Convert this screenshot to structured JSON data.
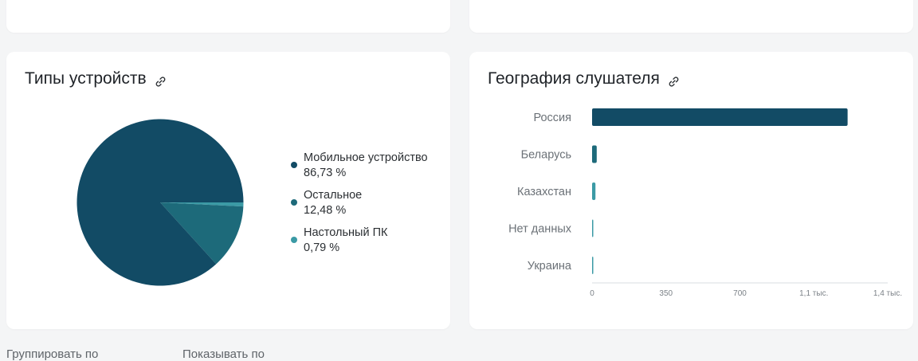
{
  "devices_card": {
    "title": "Типы устройств",
    "icon": "link-icon"
  },
  "geo_card": {
    "title": "География слушателя",
    "icon": "link-icon"
  },
  "bottom": {
    "group_by_label": "Группировать по",
    "show_by_label": "Показывать по"
  },
  "colors": {
    "primary": "#124b65",
    "secondary": "#1d6a7a",
    "tertiary": "#3b9aa5",
    "axis": "#d9dce0"
  },
  "chart_data": [
    {
      "type": "pie",
      "title": "Типы устройств",
      "slices": [
        {
          "label": "Мобильное устройство",
          "value": 86.73,
          "value_text": "86,73 %",
          "color": "#124b65"
        },
        {
          "label": "Остальное",
          "value": 12.48,
          "value_text": "12,48 %",
          "color": "#1d6a7a"
        },
        {
          "label": "Настольный ПК",
          "value": 0.79,
          "value_text": "0,79 %",
          "color": "#3b9aa5"
        }
      ],
      "legend_position": "right"
    },
    {
      "type": "bar",
      "orientation": "horizontal",
      "title": "География слушателя",
      "categories": [
        "Россия",
        "Беларусь",
        "Казахстан",
        "Нет данных",
        "Украина"
      ],
      "values": [
        1210,
        22,
        16,
        2,
        1
      ],
      "colors": [
        "#124b65",
        "#1d6a7a",
        "#3b9aa5",
        "#3b9aa5",
        "#3b9aa5"
      ],
      "xlim": [
        0,
        1400
      ],
      "xticks": [
        {
          "value": 0,
          "label": "0"
        },
        {
          "value": 350,
          "label": "350"
        },
        {
          "value": 700,
          "label": "700"
        },
        {
          "value": 1050,
          "label": "1,1 тыс."
        },
        {
          "value": 1400,
          "label": "1,4 тыс."
        }
      ],
      "grid": false
    }
  ]
}
